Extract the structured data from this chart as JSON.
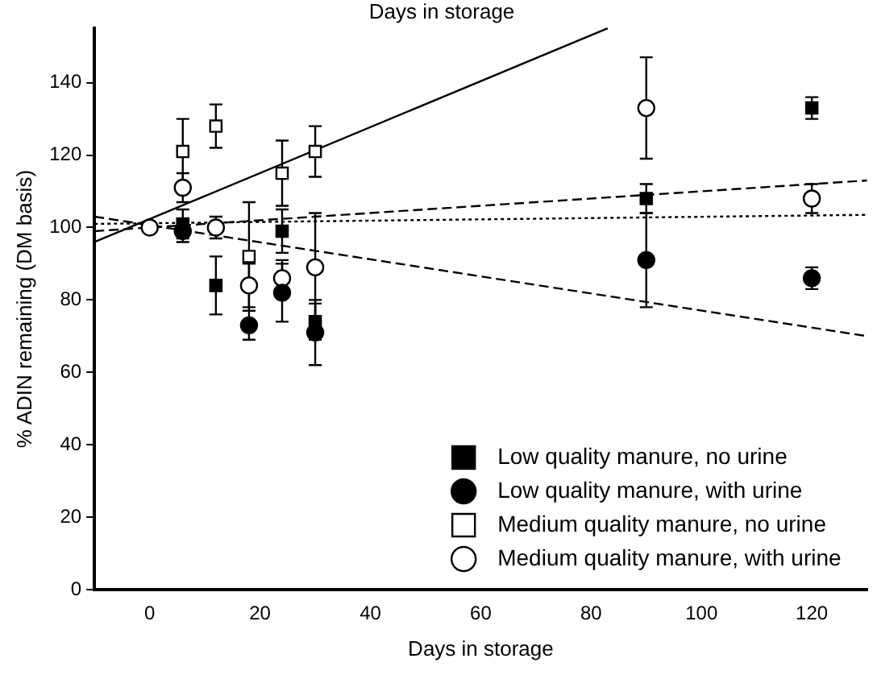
{
  "chart_data": {
    "type": "scatter",
    "title": "Days in storage",
    "xlabel": "Days in storage",
    "ylabel": "% ADIN remaining (DM basis)",
    "x": [
      0,
      6,
      12,
      18,
      24,
      30,
      90,
      120
    ],
    "series": [
      {
        "name": "Low quality manure, no urine",
        "color": "#000000",
        "marker": "square",
        "values": [
          null,
          101,
          84,
          null,
          99,
          74,
          108,
          133
        ],
        "errors": [
          null,
          4,
          8,
          null,
          6,
          5,
          4,
          3
        ]
      },
      {
        "name": "Low quality manure, with urine",
        "color": "#000000",
        "marker": "circle",
        "values": [
          null,
          99,
          null,
          73,
          82,
          71,
          91,
          86
        ],
        "errors": [
          null,
          3,
          null,
          4,
          8,
          9,
          13,
          3
        ]
      },
      {
        "name": "Medium quality manure, no urine",
        "color": "#ffffff",
        "marker": "square",
        "values": [
          null,
          121,
          128,
          92,
          115,
          121,
          null,
          null
        ],
        "errors": [
          null,
          9,
          6,
          15,
          9,
          7,
          null,
          null
        ]
      },
      {
        "name": "Medium quality manure, with urine",
        "color": "#ffffff",
        "marker": "circle",
        "values": [
          100,
          111,
          100,
          84,
          86,
          89,
          133,
          108
        ],
        "errors": [
          null,
          4,
          3,
          6,
          5,
          15,
          14,
          4
        ]
      },
      {
        "type": "line",
        "color": "#000000",
        "line_style": "solid",
        "x": [
          -10,
          83
        ],
        "values": [
          96,
          155
        ]
      },
      {
        "type": "line",
        "color": "#000000",
        "line_style": "dashed",
        "x": [
          -10,
          130
        ],
        "values": [
          99,
          113
        ]
      },
      {
        "type": "line",
        "color": "#000000",
        "line_style": "dotted",
        "x": [
          -10,
          130
        ],
        "values": [
          101,
          103.5
        ]
      },
      {
        "type": "line",
        "color": "#000000",
        "line_style": "dashed",
        "x": [
          -10,
          130
        ],
        "values": [
          103,
          70
        ]
      }
    ],
    "xlim": [
      -10,
      130
    ],
    "xticks": [
      0,
      20,
      40,
      60,
      80,
      100,
      120
    ],
    "ylim": [
      0,
      155
    ],
    "yticks": [
      0,
      20,
      40,
      60,
      80,
      100,
      120,
      140
    ],
    "grid": false,
    "legend": "bottom right"
  }
}
